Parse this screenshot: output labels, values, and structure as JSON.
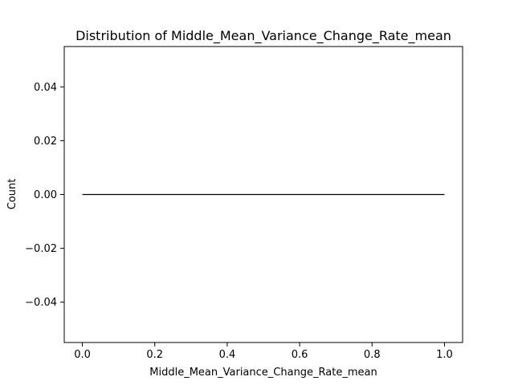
{
  "chart_data": {
    "type": "line",
    "title": "Distribution of Middle_Mean_Variance_Change_Rate_mean",
    "xlabel": "Middle_Mean_Variance_Change_Rate_mean",
    "ylabel": "Count",
    "xlim": [
      -0.05,
      1.05
    ],
    "ylim": [
      -0.055,
      0.055
    ],
    "x_ticks": [
      0.0,
      0.2,
      0.4,
      0.6,
      0.8,
      1.0
    ],
    "x_tick_labels": [
      "0.0",
      "0.2",
      "0.4",
      "0.6",
      "0.8",
      "1.0"
    ],
    "y_ticks": [
      -0.04,
      -0.02,
      0.0,
      0.02,
      0.04
    ],
    "y_tick_labels": [
      "−0.04",
      "−0.02",
      "0.00",
      "0.02",
      "0.04"
    ],
    "grid": false,
    "series": [
      {
        "color": "#000000",
        "x": [
          0.0,
          1.0
        ],
        "y": [
          0.0,
          0.0
        ]
      }
    ]
  }
}
